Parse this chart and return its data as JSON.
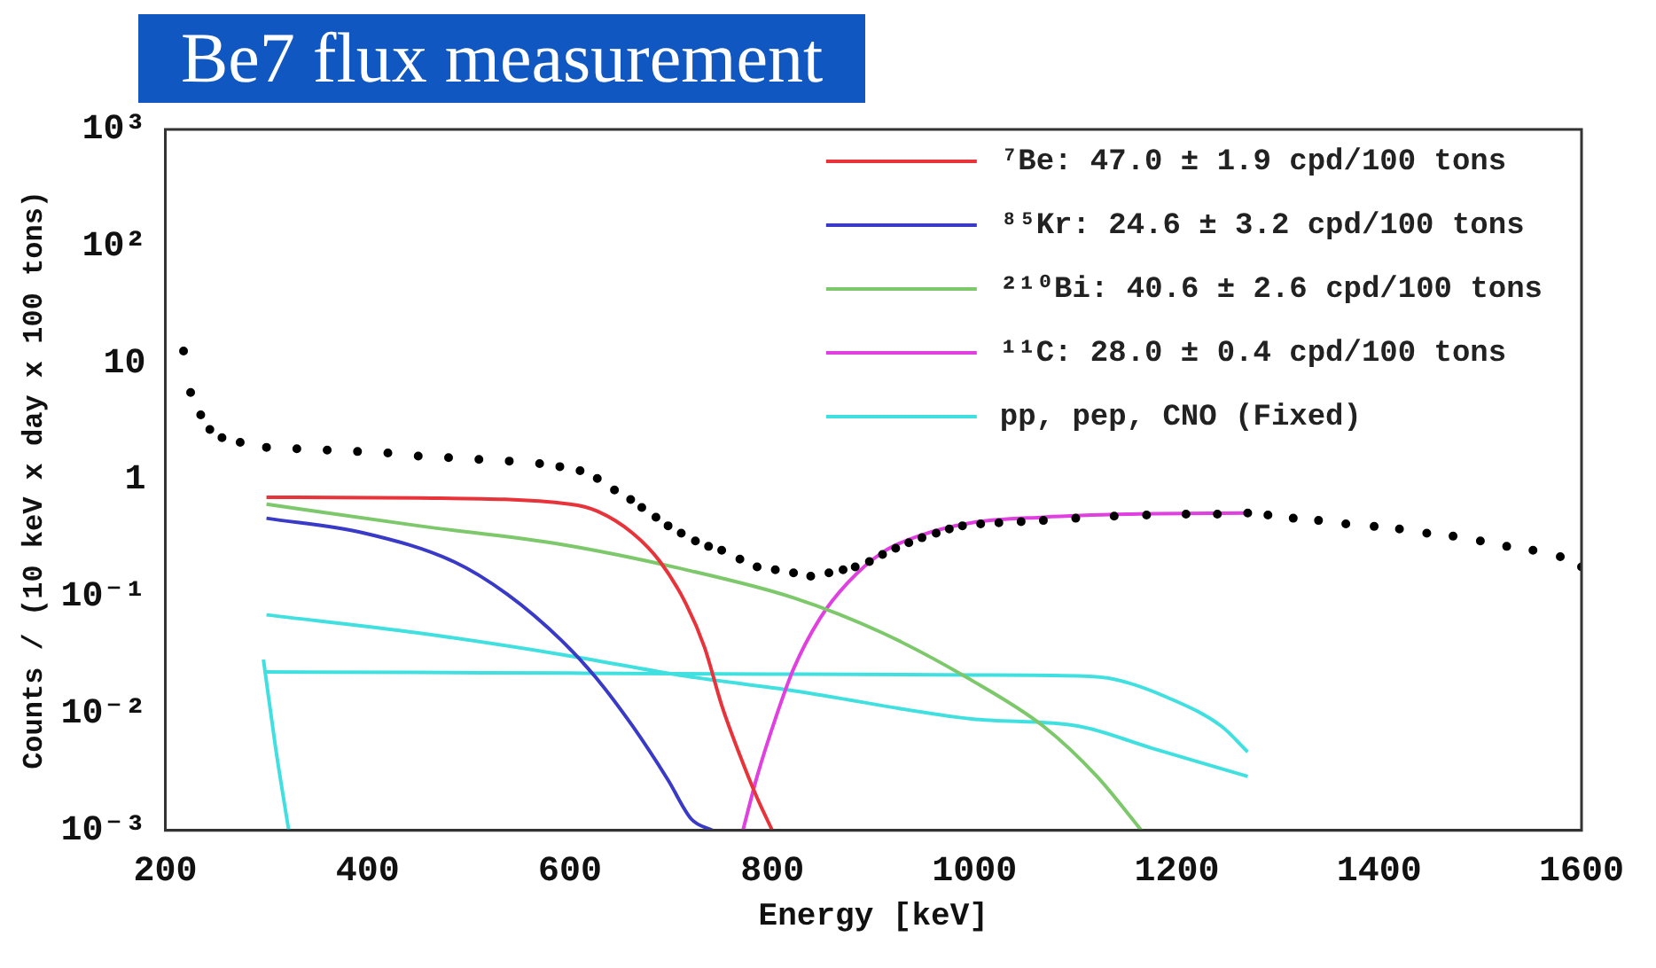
{
  "chart_data": {
    "type": "line",
    "title": "Be7 flux measurement",
    "xlabel": "Energy [keV]",
    "ylabel": "Counts / (10 keV x day x 100 tons)",
    "xlim": [
      200,
      1600
    ],
    "xticks": [
      200,
      400,
      600,
      800,
      1000,
      1200,
      1400,
      1600
    ],
    "ylim": [
      0.001,
      1000
    ],
    "yticks": [
      {
        "value": 0.001,
        "label": "10⁻³"
      },
      {
        "value": 0.01,
        "label": "10⁻²"
      },
      {
        "value": 0.1,
        "label": "10⁻¹"
      },
      1,
      10,
      {
        "value": 100,
        "label": "10²"
      },
      {
        "value": 1000,
        "label": "10³"
      }
    ],
    "log": "y",
    "grid": false,
    "legend": "top right",
    "line_style": "solid",
    "series": [
      {
        "type": "scatter",
        "marker": "circle",
        "color": "#000000",
        "x": [
          218,
          225,
          235,
          244,
          256,
          274,
          300,
          330,
          360,
          390,
          420,
          450,
          480,
          510,
          540,
          570,
          590,
          610,
          627,
          644,
          660,
          671,
          685,
          697,
          710,
          724,
          737,
          750,
          768,
          785,
          803,
          821,
          838,
          856,
          870,
          882,
          896,
          909,
          922,
          935,
          948,
          962,
          975,
          988,
          1006,
          1024,
          1046,
          1068,
          1100,
          1138,
          1170,
          1209,
          1240,
          1270,
          1290,
          1315,
          1340,
          1367,
          1395,
          1420,
          1447,
          1473,
          1500,
          1526,
          1552,
          1579,
          1600
        ],
        "values": [
          12.7,
          5.6,
          3.6,
          2.7,
          2.3,
          2.1,
          1.9,
          1.85,
          1.8,
          1.75,
          1.7,
          1.6,
          1.55,
          1.5,
          1.45,
          1.38,
          1.3,
          1.2,
          1.03,
          0.82,
          0.68,
          0.58,
          0.48,
          0.405,
          0.35,
          0.3,
          0.27,
          0.25,
          0.21,
          0.18,
          0.17,
          0.16,
          0.15,
          0.16,
          0.17,
          0.18,
          0.2,
          0.23,
          0.26,
          0.29,
          0.32,
          0.35,
          0.38,
          0.405,
          0.42,
          0.43,
          0.44,
          0.45,
          0.47,
          0.49,
          0.5,
          0.51,
          0.51,
          0.52,
          0.5,
          0.47,
          0.45,
          0.42,
          0.4,
          0.38,
          0.35,
          0.33,
          0.3,
          0.27,
          0.25,
          0.22,
          0.18
        ]
      },
      {
        "type": "line",
        "name": "⁷Be: 47.0 ± 1.9 cpd/100 tons",
        "color": "#e8333a",
        "x": [
          300,
          450,
          600,
          627,
          662,
          689,
          715,
          733,
          750,
          768,
          785,
          800
        ],
        "values": [
          0.71,
          0.7,
          0.62,
          0.54,
          0.35,
          0.2,
          0.086,
          0.037,
          0.0118,
          0.0044,
          0.0019,
          0.001
        ]
      },
      {
        "type": "line",
        "name": "⁸⁵Kr: 24.6 ± 3.2 cpd/100 tons",
        "color": "#3a3ac8",
        "x": [
          300,
          397,
          485,
          538,
          592,
          627,
          662,
          697,
          720,
          741
        ],
        "values": [
          0.47,
          0.35,
          0.2,
          0.105,
          0.042,
          0.0197,
          0.0078,
          0.0027,
          0.00125,
          0.001
        ]
      },
      {
        "type": "line",
        "name": "²¹⁰Bi: 40.6 ± 2.6 cpd/100 tons",
        "color": "#7cc86a",
        "x": [
          300,
          450,
          592,
          715,
          821,
          909,
          997,
          1068,
          1121,
          1165
        ],
        "values": [
          0.62,
          0.405,
          0.28,
          0.17,
          0.098,
          0.049,
          0.0193,
          0.0078,
          0.0029,
          0.001
        ]
      },
      {
        "type": "line",
        "name": "¹¹C: 28.0 ± 0.4 cpd/100 tons",
        "color": "#e040e0",
        "x": [
          771,
          785,
          803,
          821,
          847,
          874,
          909,
          944,
          997,
          1068,
          1156,
          1270
        ],
        "values": [
          0.001,
          0.0029,
          0.009,
          0.0241,
          0.065,
          0.13,
          0.24,
          0.33,
          0.43,
          0.48,
          0.51,
          0.52
        ]
      },
      {
        "type": "line",
        "name": "pp, pep, CNO (Fixed)",
        "color": "#40e0e0",
        "x": [
          300,
          450,
          592,
          715,
          821,
          997,
          1103,
          1174,
          1270
        ],
        "values": [
          0.07,
          0.049,
          0.032,
          0.0209,
          0.0157,
          0.009,
          0.0078,
          0.0051,
          0.0029
        ]
      },
      {
        "type": "line",
        "color": "#40e0e0",
        "x": [
          300,
          450,
          600,
          800,
          1000,
          1103,
          1138,
          1191,
          1244,
          1270
        ],
        "values": [
          0.0227,
          0.0225,
          0.0222,
          0.0218,
          0.0214,
          0.021,
          0.0197,
          0.0137,
          0.0078,
          0.0047
        ]
      },
      {
        "type": "line",
        "color": "#40e0e0",
        "x": [
          297,
          309,
          322
        ],
        "values": [
          0.029,
          0.0051,
          0.001
        ]
      }
    ]
  }
}
